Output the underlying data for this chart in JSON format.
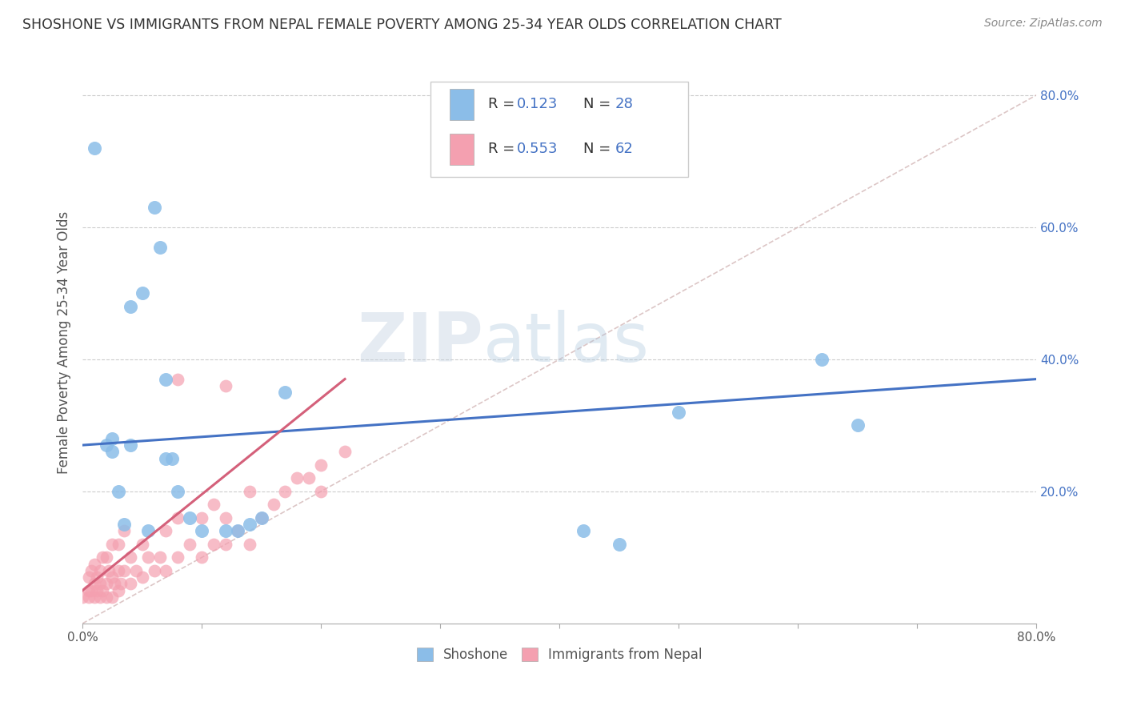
{
  "title": "SHOSHONE VS IMMIGRANTS FROM NEPAL FEMALE POVERTY AMONG 25-34 YEAR OLDS CORRELATION CHART",
  "source": "Source: ZipAtlas.com",
  "ylabel": "Female Poverty Among 25-34 Year Olds",
  "xlim": [
    0.0,
    0.8
  ],
  "ylim": [
    0.0,
    0.85
  ],
  "xticks": [
    0.0,
    0.1,
    0.2,
    0.3,
    0.4,
    0.5,
    0.6,
    0.7,
    0.8
  ],
  "xtick_labels_bottom": [
    "0.0%",
    "",
    "",
    "",
    "",
    "",
    "",
    "",
    "80.0%"
  ],
  "yticks": [
    0.2,
    0.4,
    0.6,
    0.8
  ],
  "ytick_labels": [
    "20.0%",
    "40.0%",
    "60.0%",
    "80.0%"
  ],
  "grid_color": "#cccccc",
  "background_color": "#ffffff",
  "shoshone_color": "#8bbde8",
  "nepal_color": "#f4a0b0",
  "shoshone_line_color": "#4472c4",
  "nepal_line_color": "#d4607a",
  "diagonal_color": "#d4b8b8",
  "shoshone_x": [
    0.01,
    0.02,
    0.025,
    0.025,
    0.03,
    0.035,
    0.04,
    0.04,
    0.05,
    0.055,
    0.06,
    0.065,
    0.07,
    0.07,
    0.075,
    0.08,
    0.09,
    0.1,
    0.12,
    0.13,
    0.14,
    0.15,
    0.17,
    0.42,
    0.5,
    0.62,
    0.65,
    0.45
  ],
  "shoshone_y": [
    0.72,
    0.27,
    0.26,
    0.28,
    0.2,
    0.15,
    0.27,
    0.48,
    0.5,
    0.14,
    0.63,
    0.57,
    0.37,
    0.25,
    0.25,
    0.2,
    0.16,
    0.14,
    0.14,
    0.14,
    0.15,
    0.16,
    0.35,
    0.14,
    0.32,
    0.4,
    0.3,
    0.12
  ],
  "nepal_x": [
    0.0,
    0.005,
    0.005,
    0.005,
    0.007,
    0.007,
    0.01,
    0.01,
    0.01,
    0.012,
    0.012,
    0.015,
    0.015,
    0.015,
    0.017,
    0.017,
    0.02,
    0.02,
    0.02,
    0.022,
    0.025,
    0.025,
    0.025,
    0.027,
    0.03,
    0.03,
    0.03,
    0.032,
    0.035,
    0.035,
    0.04,
    0.04,
    0.045,
    0.05,
    0.05,
    0.055,
    0.06,
    0.065,
    0.07,
    0.07,
    0.08,
    0.08,
    0.09,
    0.1,
    0.1,
    0.11,
    0.11,
    0.12,
    0.12,
    0.13,
    0.14,
    0.14,
    0.15,
    0.16,
    0.17,
    0.18,
    0.19,
    0.2,
    0.2,
    0.22,
    0.12,
    0.08
  ],
  "nepal_y": [
    0.04,
    0.04,
    0.05,
    0.07,
    0.05,
    0.08,
    0.04,
    0.06,
    0.09,
    0.05,
    0.07,
    0.04,
    0.06,
    0.08,
    0.05,
    0.1,
    0.04,
    0.06,
    0.1,
    0.08,
    0.04,
    0.07,
    0.12,
    0.06,
    0.05,
    0.08,
    0.12,
    0.06,
    0.08,
    0.14,
    0.06,
    0.1,
    0.08,
    0.07,
    0.12,
    0.1,
    0.08,
    0.1,
    0.08,
    0.14,
    0.1,
    0.16,
    0.12,
    0.1,
    0.16,
    0.12,
    0.18,
    0.12,
    0.16,
    0.14,
    0.12,
    0.2,
    0.16,
    0.18,
    0.2,
    0.22,
    0.22,
    0.2,
    0.24,
    0.26,
    0.36,
    0.37
  ],
  "shoshone_line_x0": 0.0,
  "shoshone_line_y0": 0.27,
  "shoshone_line_x1": 0.8,
  "shoshone_line_y1": 0.37,
  "nepal_line_x0": 0.0,
  "nepal_line_y0": 0.05,
  "nepal_line_x1": 0.22,
  "nepal_line_y1": 0.37
}
